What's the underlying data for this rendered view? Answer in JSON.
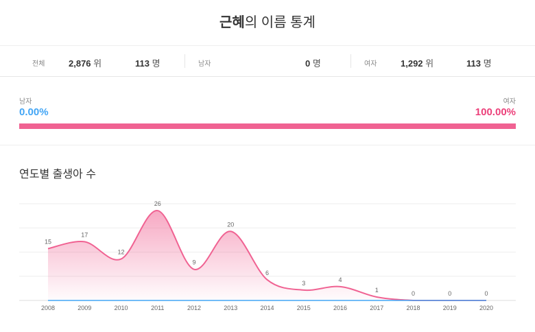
{
  "header": {
    "name": "근혜",
    "suffix": "의 이름 통계"
  },
  "stats": {
    "total": {
      "label": "전체",
      "rank": "2,876",
      "rank_unit": "위",
      "count": "113",
      "count_unit": "명"
    },
    "male": {
      "label": "남자",
      "count": "0",
      "count_unit": "명"
    },
    "female": {
      "label": "여자",
      "rank": "1,292",
      "rank_unit": "위",
      "count": "113",
      "count_unit": "명"
    }
  },
  "gender_ratio": {
    "male_label": "남자",
    "male_pct": "0.00%",
    "female_label": "여자",
    "female_pct": "100.00%",
    "female_fraction": 1.0
  },
  "colors": {
    "male": "#42a5f5",
    "female": "#f06292"
  },
  "chart_data": {
    "type": "area",
    "title": "연도별 출생아 수",
    "categories": [
      "2008",
      "2009",
      "2010",
      "2011",
      "2012",
      "2013",
      "2014",
      "2015",
      "2016",
      "2017",
      "2018",
      "2019",
      "2020"
    ],
    "series": [
      {
        "name": "여자",
        "values": [
          15,
          17,
          12,
          26,
          9,
          20,
          6,
          3,
          4,
          1,
          0,
          0,
          0
        ]
      },
      {
        "name": "남자",
        "values": [
          0,
          0,
          0,
          0,
          0,
          0,
          0,
          0,
          0,
          0,
          0,
          0,
          0
        ]
      }
    ],
    "ylim": [
      0,
      28
    ],
    "grid": true
  }
}
